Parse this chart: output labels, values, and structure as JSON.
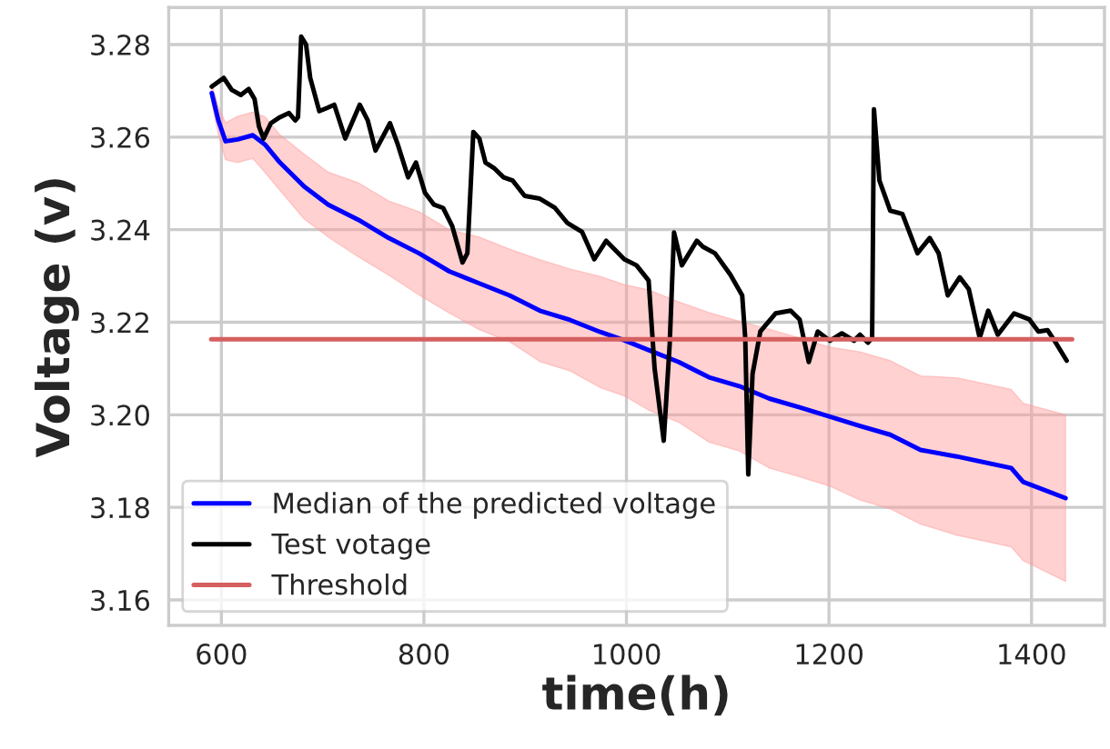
{
  "chart_data": {
    "type": "line",
    "xlabel": "time(h)",
    "ylabel": "Voltage (v)",
    "xlim": [
      548,
      1472
    ],
    "ylim": [
      3.1545,
      3.288
    ],
    "xticks": [
      600,
      800,
      1000,
      1200,
      1400
    ],
    "yticks": [
      {
        "value": 3.16,
        "label": "3.16"
      },
      {
        "value": 3.18,
        "label": "3.18"
      },
      {
        "value": 3.2,
        "label": "3.20"
      },
      {
        "value": 3.22,
        "label": "3.22"
      },
      {
        "value": 3.24,
        "label": "3.24"
      },
      {
        "value": 3.26,
        "label": "3.26"
      },
      {
        "value": 3.28,
        "label": "3.28"
      }
    ],
    "grid": true,
    "legend": "bottom left",
    "line_style": "solid",
    "marker": "none",
    "series": [
      {
        "name": "Median of the predicted voltage",
        "color": "#0000ff",
        "x": [
          590.5,
          597.0,
          604.1,
          616.1,
          631.0,
          643.0,
          657.8,
          681.8,
          705.6,
          735.5,
          765.2,
          795.1,
          825.0,
          854.7,
          884.6,
          914.5,
          944.2,
          974.1,
          997.9,
          1021.9,
          1051.6,
          1081.5,
          1111.4,
          1141.1,
          1171.0,
          1200.9,
          1230.6,
          1260.5,
          1290.4,
          1326.2,
          1379.9,
          1391.7,
          1433.6
        ],
        "values": [
          3.2695,
          3.2636,
          3.2591,
          3.2595,
          3.2604,
          3.2584,
          3.2545,
          3.2493,
          3.2454,
          3.2421,
          3.2382,
          3.2349,
          3.231,
          3.2284,
          3.2258,
          3.2225,
          3.2205,
          3.2179,
          3.2161,
          3.214,
          3.2114,
          3.2081,
          3.2062,
          3.2035,
          3.2016,
          3.1996,
          3.1976,
          3.1957,
          3.1924,
          3.191,
          3.1885,
          3.1855,
          3.182
        ],
        "upper": [
          3.2715,
          3.2666,
          3.2631,
          3.2645,
          3.2654,
          3.2644,
          3.2605,
          3.2563,
          3.2524,
          3.2501,
          3.2462,
          3.2439,
          3.24,
          3.2384,
          3.2358,
          3.2335,
          3.2315,
          3.2299,
          3.2281,
          3.227,
          3.2244,
          3.2221,
          3.2202,
          3.2185,
          3.2166,
          3.2146,
          3.2136,
          3.2117,
          3.2084,
          3.208,
          3.2055,
          3.2025,
          3.2
        ],
        "lower": [
          3.2675,
          3.2606,
          3.2551,
          3.2545,
          3.2554,
          3.2524,
          3.2485,
          3.2423,
          3.2384,
          3.2341,
          3.2302,
          3.2259,
          3.222,
          3.2184,
          3.2158,
          3.2115,
          3.2095,
          3.2059,
          3.2041,
          3.201,
          3.1984,
          3.1941,
          3.1922,
          3.1885,
          3.1866,
          3.1846,
          3.1816,
          3.1797,
          3.1764,
          3.174,
          3.1715,
          3.1685,
          3.164
        ]
      },
      {
        "name": "Test votage",
        "color": "#000000",
        "x": [
          590.5,
          602.3,
          610.2,
          619.2,
          626.9,
          632.8,
          637.1,
          641.7,
          648.9,
          657.8,
          666.8,
          672.9,
          675.7,
          678.8,
          683.6,
          687.7,
          696.7,
          704.4,
          711.5,
          722.3,
          736.6,
          744.5,
          752.2,
          766.5,
          774.2,
          784.4,
          792.1,
          801.0,
          810.0,
          818.9,
          827.9,
          838.1,
          842.9,
          848.8,
          854.7,
          860.8,
          869.8,
          878.7,
          887.7,
          899.5,
          914.5,
          929.4,
          941.4,
          956.2,
          968.2,
          980.0,
          997.9,
          1009.9,
          1021.9,
          1027.8,
          1036.8,
          1042.7,
          1047.0,
          1054.7,
          1069.5,
          1075.6,
          1087.4,
          1102.5,
          1114.3,
          1117.3,
          1120.3,
          1124.5,
          1132.2,
          1147.2,
          1162.1,
          1171.0,
          1180.0,
          1188.9,
          1200.9,
          1212.7,
          1224.7,
          1230.6,
          1238.5,
          1242.6,
          1244.4,
          1249.8,
          1260.5,
          1272.5,
          1287.4,
          1299.4,
          1308.3,
          1317.3,
          1329.1,
          1338.1,
          1348.8,
          1357.2,
          1366.7,
          1382.8,
          1397.9,
          1406.8,
          1415.8,
          1424.7,
          1434.7
        ],
        "values": [
          3.2709,
          3.2728,
          3.2702,
          3.2691,
          3.2704,
          3.2682,
          3.2623,
          3.2597,
          3.263,
          3.2643,
          3.2652,
          3.2636,
          3.2643,
          3.2817,
          3.28,
          3.2728,
          3.2656,
          3.2663,
          3.267,
          3.2597,
          3.267,
          3.2636,
          3.2571,
          3.263,
          3.2584,
          3.2513,
          3.2545,
          3.248,
          3.2454,
          3.2447,
          3.2408,
          3.2329,
          3.2349,
          3.2611,
          3.2597,
          3.2545,
          3.2532,
          3.2513,
          3.2506,
          3.2473,
          3.2467,
          3.2447,
          3.2415,
          3.2395,
          3.2336,
          3.2376,
          3.2336,
          3.2323,
          3.229,
          3.21,
          3.1944,
          3.2153,
          3.2394,
          3.2323,
          3.2376,
          3.2363,
          3.2349,
          3.2303,
          3.2258,
          3.2166,
          3.1871,
          3.2088,
          3.218,
          3.2219,
          3.2225,
          3.2206,
          3.2114,
          3.218,
          3.216,
          3.2176,
          3.216,
          3.2173,
          3.2156,
          3.2166,
          3.266,
          3.2506,
          3.2441,
          3.2434,
          3.2349,
          3.2382,
          3.2349,
          3.2258,
          3.2297,
          3.2271,
          3.2166,
          3.2225,
          3.2173,
          3.2219,
          3.2206,
          3.218,
          3.2183,
          3.2153,
          3.2117
        ]
      },
      {
        "name": "Threshold",
        "color": "#d65f5f",
        "x": [
          590,
          1440
        ],
        "values": [
          3.2163,
          3.2163
        ]
      }
    ]
  }
}
